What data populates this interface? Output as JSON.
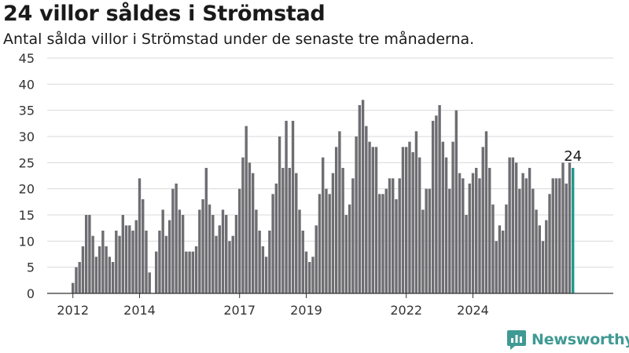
{
  "title": "24 villor såldes i Strömstad",
  "subtitle": "Antal sålda villor i Strömstad under de senaste tre månaderna.",
  "brand": {
    "name": "Newsworthy",
    "icon": "newsworthy-logo-icon"
  },
  "colors": {
    "bar": "#6e6d72",
    "highlight": "#1f9a8e",
    "grid": "#d9d9d9",
    "axis": "#333333",
    "brand": "#3f9a93"
  },
  "chart_data": {
    "type": "bar",
    "title": "24 villor såldes i Strömstad",
    "xlabel": "",
    "ylabel": "",
    "ylim": [
      0,
      45
    ],
    "yticks": [
      0,
      5,
      10,
      15,
      20,
      25,
      30,
      35,
      40,
      45
    ],
    "xticks": [
      {
        "label": "2012",
        "index": 0
      },
      {
        "label": "2014",
        "index": 20
      },
      {
        "label": "2017",
        "index": 50
      },
      {
        "label": "2019",
        "index": 70
      },
      {
        "label": "2022",
        "index": 100
      },
      {
        "label": "2024",
        "index": 120
      }
    ],
    "grid": true,
    "values": [
      2,
      5,
      6,
      9,
      15,
      15,
      11,
      7,
      9,
      12,
      9,
      7,
      6,
      12,
      11,
      15,
      13,
      13,
      12,
      14,
      22,
      18,
      12,
      4,
      0,
      8,
      12,
      16,
      11,
      14,
      20,
      21,
      16,
      15,
      8,
      8,
      8,
      9,
      16,
      18,
      24,
      17,
      15,
      11,
      13,
      16,
      15,
      10,
      11,
      15,
      20,
      26,
      32,
      25,
      23,
      16,
      12,
      9,
      7,
      12,
      19,
      21,
      30,
      24,
      33,
      24,
      33,
      23,
      16,
      12,
      8,
      6,
      7,
      13,
      19,
      26,
      20,
      19,
      23,
      28,
      31,
      24,
      15,
      17,
      22,
      30,
      36,
      37,
      32,
      29,
      28,
      28,
      19,
      19,
      20,
      22,
      22,
      18,
      22,
      28,
      28,
      29,
      27,
      31,
      26,
      16,
      20,
      20,
      33,
      34,
      36,
      29,
      26,
      20,
      29,
      35,
      23,
      22,
      15,
      21,
      23,
      24,
      22,
      28,
      31,
      24,
      17,
      10,
      13,
      12,
      17,
      26,
      26,
      25,
      20,
      23,
      22,
      24,
      20,
      16,
      13,
      10,
      14,
      19,
      22,
      22,
      22,
      25,
      21,
      25,
      24
    ],
    "highlight": {
      "index": 150,
      "value": 24,
      "label": "24"
    }
  }
}
